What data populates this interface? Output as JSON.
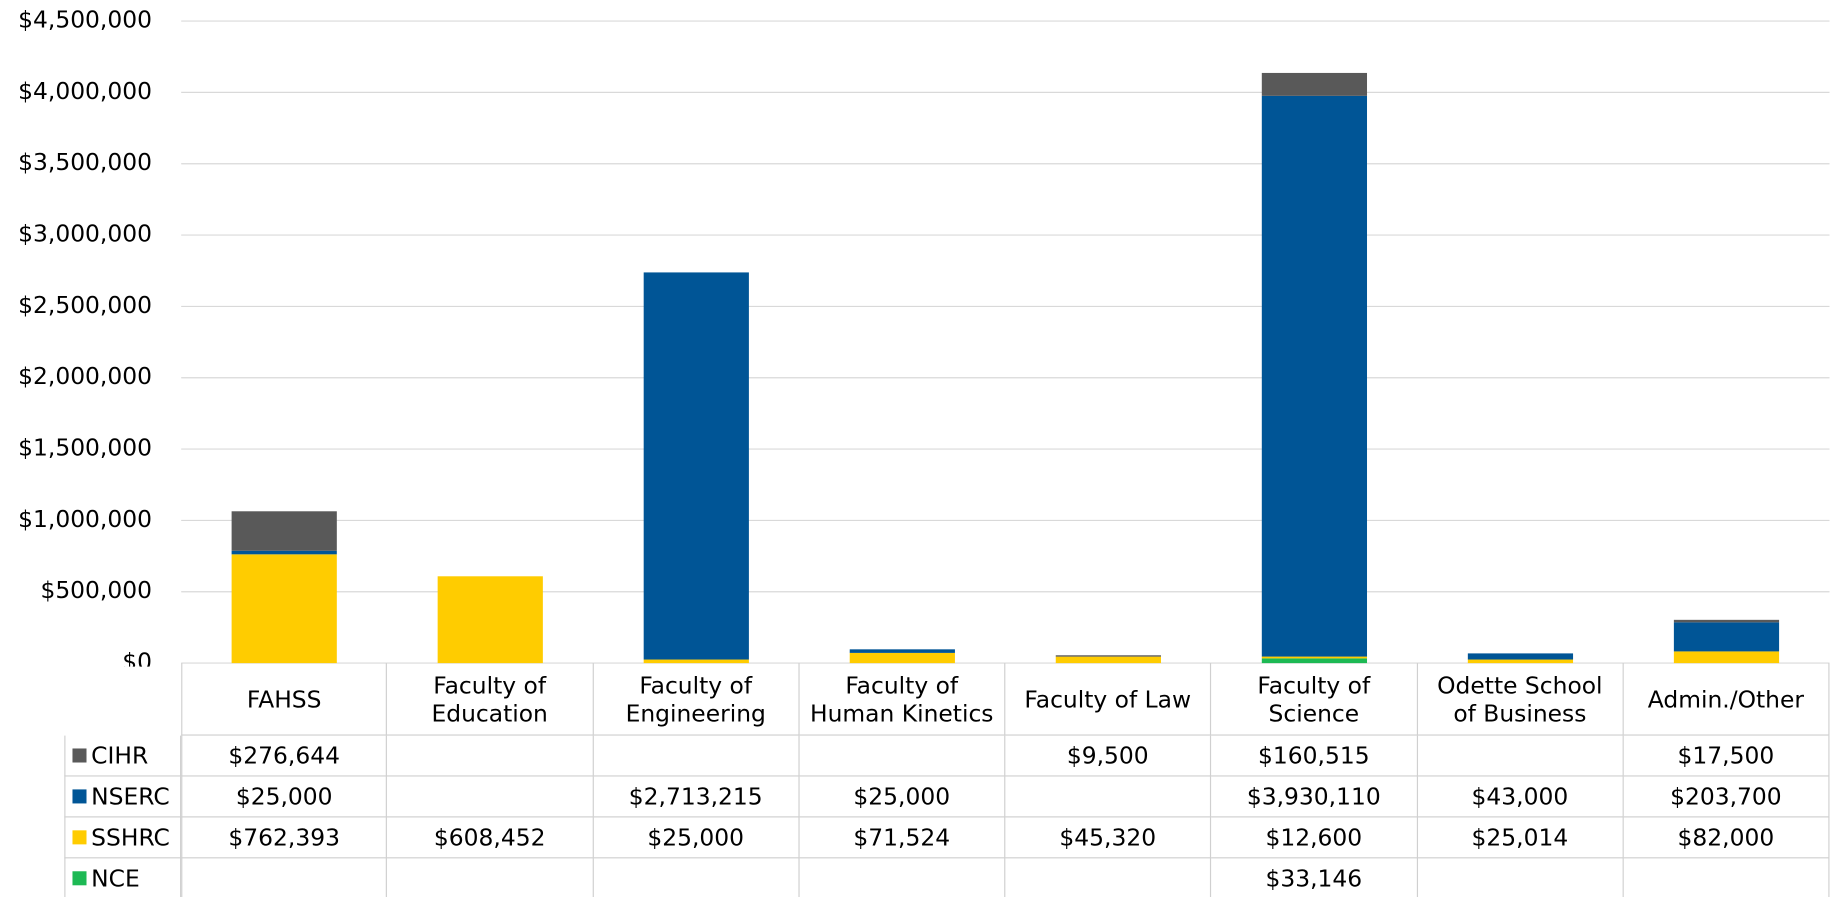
{
  "chart_data": {
    "type": "bar",
    "stacked": true,
    "categories": [
      "FAHSS",
      "Faculty of Education",
      "Faculty of Engineering",
      "Faculty of Human Kinetics",
      "Faculty of Law",
      "Faculty of Science",
      "Odette School of Business",
      "Admin./Other"
    ],
    "series": [
      {
        "name": "NCE",
        "color": "#1db954",
        "values": [
          null,
          null,
          null,
          null,
          null,
          33146,
          null,
          null
        ],
        "value_labels": [
          null,
          null,
          null,
          null,
          null,
          "$33,146",
          null,
          null
        ]
      },
      {
        "name": "SSHRC",
        "color": "#ffcc00",
        "values": [
          762393,
          608452,
          25000,
          71524,
          45320,
          12600,
          25014,
          82000
        ],
        "value_labels": [
          "$762,393",
          "$608,452",
          "$25,000",
          "$71,524",
          "$45,320",
          "$12,600",
          "$25,014",
          "$82,000"
        ]
      },
      {
        "name": "NSERC",
        "color": "#005596",
        "values": [
          25000,
          null,
          2713215,
          25000,
          null,
          3930110,
          43000,
          203700
        ],
        "value_labels": [
          "$25,000",
          null,
          "$2,713,215",
          "$25,000",
          null,
          "$3,930,110",
          "$43,000",
          "$203,700"
        ]
      },
      {
        "name": "CIHR",
        "color": "#595959",
        "values": [
          276644,
          null,
          null,
          null,
          9500,
          160515,
          null,
          17500
        ],
        "value_labels": [
          "$276,644",
          null,
          null,
          null,
          "$9,500",
          "$160,515",
          null,
          "$17,500"
        ]
      }
    ],
    "ylim": [
      0,
      4500000
    ],
    "yticks": [
      {
        "value": 0,
        "label": "$0"
      },
      {
        "value": 500000,
        "label": "$500,000"
      },
      {
        "value": 1000000,
        "label": "$1,000,000"
      },
      {
        "value": 1500000,
        "label": "$1,500,000"
      },
      {
        "value": 2000000,
        "label": "$2,000,000"
      },
      {
        "value": 2500000,
        "label": "$2,500,000"
      },
      {
        "value": 3000000,
        "label": "$3,000,000"
      },
      {
        "value": 3500000,
        "label": "$3,500,000"
      },
      {
        "value": 4000000,
        "label": "$4,000,000"
      },
      {
        "value": 4500000,
        "label": "$4,500,000"
      }
    ],
    "grid": true
  }
}
